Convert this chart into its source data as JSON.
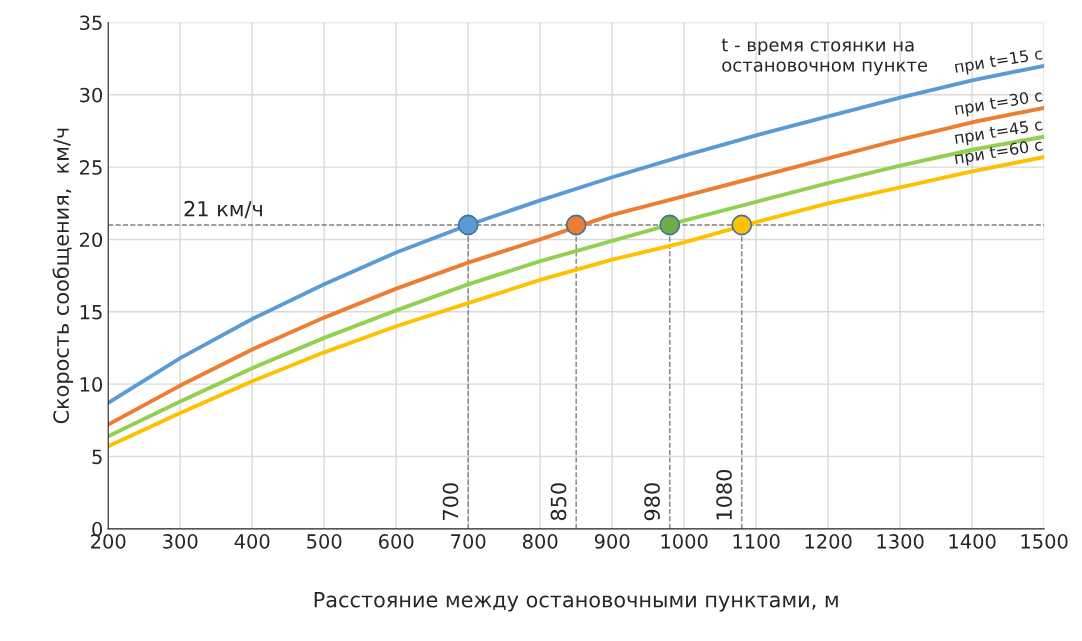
{
  "chart_data": {
    "type": "line",
    "xlabel": "Расстояние между остановочными пунктами, м",
    "ylabel": "Скорость сообщения,  км/ч",
    "x": [
      200,
      300,
      400,
      500,
      600,
      700,
      800,
      900,
      1000,
      1100,
      1200,
      1300,
      1400,
      1500
    ],
    "series": [
      {
        "name": "при t=15 с",
        "color": "#5b9bd5",
        "values": [
          8.7,
          11.8,
          14.5,
          16.9,
          19.1,
          21.0,
          22.7,
          24.3,
          25.8,
          27.2,
          28.5,
          29.8,
          31.0,
          32.0
        ]
      },
      {
        "name": "при t=30 с",
        "color": "#ed7d31",
        "values": [
          7.2,
          9.9,
          12.4,
          14.6,
          16.6,
          18.4,
          20.0,
          21.7,
          23.0,
          24.3,
          25.6,
          26.9,
          28.1,
          29.1
        ]
      },
      {
        "name": "при t=45 с",
        "color": "#92d050",
        "values": [
          6.4,
          8.8,
          11.1,
          13.2,
          15.1,
          16.9,
          18.5,
          19.9,
          21.3,
          22.6,
          23.9,
          25.1,
          26.2,
          27.1
        ]
      },
      {
        "name": "при t=60 с",
        "color": "#ffc000",
        "values": [
          5.7,
          8.0,
          10.2,
          12.2,
          14.0,
          15.6,
          17.2,
          18.6,
          19.8,
          21.2,
          22.5,
          23.6,
          24.7,
          25.7
        ]
      },
      {
        "type": "scatter",
        "x": [
          700,
          850,
          980,
          1080
        ],
        "values": [
          21,
          21,
          21,
          21
        ],
        "colors": [
          "#5b9bd5",
          "#ed7d31",
          "#70ad47",
          "#ffc000"
        ]
      }
    ],
    "xlim": [
      200,
      1500
    ],
    "xticks": [
      200,
      300,
      400,
      500,
      600,
      700,
      800,
      900,
      1000,
      1100,
      1200,
      1300,
      1400,
      1500
    ],
    "ylim": [
      0,
      35
    ],
    "yticks": [
      0,
      5,
      10,
      15,
      20,
      25,
      30,
      35
    ],
    "ref_lines": [
      {
        "axis": "y",
        "value": 21,
        "label": "21 км/ч",
        "color": "#7f7f7f",
        "line_style": "dashed"
      },
      {
        "axis": "x",
        "value": 700,
        "label": "700",
        "color": "#7f7f7f",
        "line_style": "dashed"
      },
      {
        "axis": "x",
        "value": 850,
        "label": "850",
        "color": "#7f7f7f",
        "line_style": "dashed"
      },
      {
        "axis": "x",
        "value": 980,
        "label": "980",
        "color": "#7f7f7f",
        "line_style": "dashed"
      },
      {
        "axis": "x",
        "value": 1080,
        "label": "1080",
        "color": "#7f7f7f",
        "line_style": "dashed"
      }
    ],
    "annotations": [
      "t - время стоянки на\nостановочном пункте"
    ],
    "grid": true,
    "legend": false
  }
}
